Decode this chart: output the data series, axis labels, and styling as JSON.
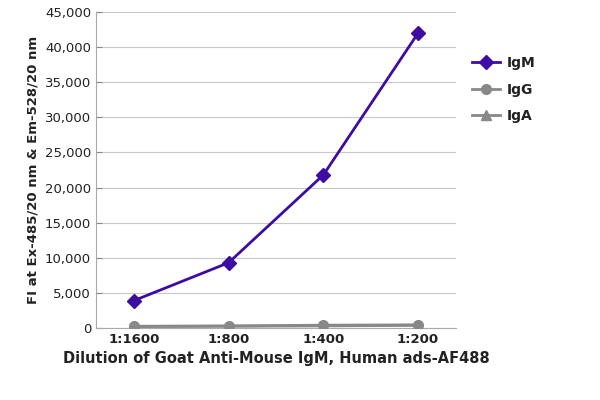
{
  "x_labels": [
    "1:1600",
    "1:800",
    "1:400",
    "1:200"
  ],
  "x_values": [
    1,
    2,
    3,
    4
  ],
  "IgM_values": [
    3900,
    9300,
    21800,
    42000
  ],
  "IgG_values": [
    250,
    300,
    400,
    450
  ],
  "IgA_values": [
    200,
    250,
    300,
    380
  ],
  "IgM_color": "#3d0da3",
  "IgG_color": "#888888",
  "IgA_color": "#888888",
  "xlabel": "Dilution of Goat Anti-Mouse IgM, Human ads-AF488",
  "ylabel": "FI at Ex-485/20 nm & Em-528/20 nm",
  "ylim": [
    0,
    45000
  ],
  "yticks": [
    0,
    5000,
    10000,
    15000,
    20000,
    25000,
    30000,
    35000,
    40000,
    45000
  ],
  "grid_color": "#c8c8c8",
  "background_color": "#ffffff",
  "legend_labels": [
    "IgM",
    "IgG",
    "IgA"
  ],
  "xlabel_fontsize": 10.5,
  "ylabel_fontsize": 9.5,
  "tick_fontsize": 9.5,
  "legend_fontsize": 10,
  "linewidth": 2.0,
  "IgM_markersize": 7,
  "IgG_markersize": 7,
  "IgA_markersize": 7
}
